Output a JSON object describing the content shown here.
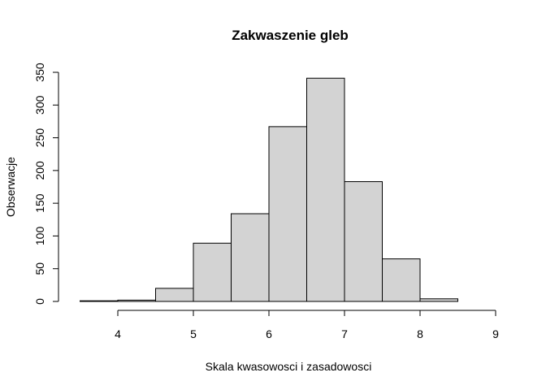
{
  "chart_data": {
    "type": "bar",
    "title": "Zakwaszenie gleb",
    "xlabel": "Skala kwasowosci i zasadowosci",
    "ylabel": "Obserwacje",
    "bins": [
      {
        "start": 3.5,
        "end": 4.0,
        "value": 1
      },
      {
        "start": 4.0,
        "end": 4.5,
        "value": 2
      },
      {
        "start": 4.5,
        "end": 5.0,
        "value": 20
      },
      {
        "start": 5.0,
        "end": 5.5,
        "value": 89
      },
      {
        "start": 5.5,
        "end": 6.0,
        "value": 134
      },
      {
        "start": 6.0,
        "end": 6.5,
        "value": 267
      },
      {
        "start": 6.5,
        "end": 7.0,
        "value": 341
      },
      {
        "start": 7.0,
        "end": 7.5,
        "value": 183
      },
      {
        "start": 7.5,
        "end": 8.0,
        "value": 65
      },
      {
        "start": 8.0,
        "end": 8.5,
        "value": 4
      },
      {
        "start": 8.5,
        "end": 9.0,
        "value": 0
      }
    ],
    "xlim": [
      3.5,
      9
    ],
    "ylim": [
      0,
      350
    ],
    "x_ticks": [
      4,
      5,
      6,
      7,
      8,
      9
    ],
    "y_ticks": [
      0,
      50,
      100,
      150,
      200,
      250,
      300,
      350
    ],
    "grid": false,
    "colors": {
      "bar_fill": "#d3d3d3",
      "bar_stroke": "#000000"
    }
  }
}
